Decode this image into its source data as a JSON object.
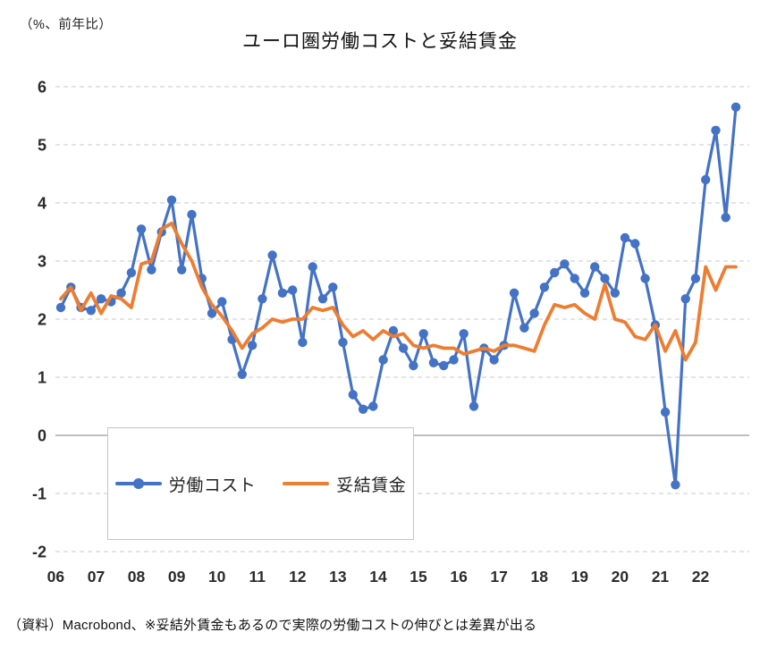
{
  "header": {
    "unit_label": "（%、前年比）",
    "title": "ユーロ圏労働コストと妥結賃金"
  },
  "legend": {
    "items": [
      {
        "id": "labor-cost",
        "label": "労働コスト",
        "color": "#4472C4",
        "has_marker": true
      },
      {
        "id": "negotiated-wages",
        "label": "妥結賃金",
        "color": "#ED7D31",
        "has_marker": false
      }
    ]
  },
  "footer": {
    "source_note": "（資料）Macrobond、※妥結外賃金もあるので実際の労働コストの伸びとは差異が出る"
  },
  "chart_data": {
    "type": "line",
    "title": "ユーロ圏労働コストと妥結賃金",
    "unit": "%、前年比",
    "frequency": "quarterly",
    "x_start": "2006Q1",
    "x_end": "2022Q4",
    "x_tick_labels": [
      "06",
      "07",
      "08",
      "09",
      "10",
      "11",
      "12",
      "13",
      "14",
      "15",
      "16",
      "17",
      "18",
      "19",
      "20",
      "21",
      "22"
    ],
    "y_ticks": [
      -2,
      -1,
      0,
      1,
      2,
      3,
      4,
      5,
      6
    ],
    "ylim": [
      -2,
      6
    ],
    "grid": "dashed-horizontal",
    "zero_line": "solid",
    "legend_position": "bottom-left-box",
    "series": [
      {
        "id": "labor-cost",
        "name": "労働コスト",
        "color": "#4472C4",
        "marker": "circle",
        "values": [
          2.2,
          2.55,
          2.2,
          2.15,
          2.35,
          2.3,
          2.45,
          2.8,
          3.55,
          2.85,
          3.5,
          4.05,
          2.85,
          3.8,
          2.7,
          2.1,
          2.3,
          1.65,
          1.05,
          1.55,
          2.35,
          3.1,
          2.45,
          2.5,
          1.6,
          2.9,
          2.35,
          2.55,
          1.6,
          0.7,
          0.45,
          0.5,
          1.3,
          1.8,
          1.5,
          1.2,
          1.75,
          1.25,
          1.2,
          1.3,
          1.75,
          0.5,
          1.5,
          1.3,
          1.55,
          2.45,
          1.85,
          2.1,
          2.55,
          2.8,
          2.95,
          2.7,
          2.45,
          2.9,
          2.7,
          2.45,
          3.4,
          3.3,
          2.7,
          1.9,
          0.4,
          -0.85,
          2.35,
          2.7,
          4.4,
          5.25,
          3.75,
          5.65
        ]
      },
      {
        "id": "negotiated-wages",
        "name": "妥結賃金",
        "color": "#ED7D31",
        "marker": "none",
        "values": [
          2.35,
          2.55,
          2.15,
          2.45,
          2.1,
          2.4,
          2.35,
          2.2,
          2.95,
          3.0,
          3.55,
          3.65,
          3.3,
          3.0,
          2.55,
          2.25,
          2.05,
          1.8,
          1.5,
          1.75,
          1.85,
          2.0,
          1.95,
          2.0,
          2.0,
          2.2,
          2.15,
          2.2,
          1.9,
          1.7,
          1.8,
          1.65,
          1.8,
          1.7,
          1.75,
          1.55,
          1.5,
          1.55,
          1.5,
          1.5,
          1.4,
          1.45,
          1.5,
          1.45,
          1.55,
          1.55,
          1.5,
          1.45,
          1.9,
          2.25,
          2.2,
          2.25,
          2.1,
          2.0,
          2.6,
          2.0,
          1.95,
          1.7,
          1.65,
          1.9,
          1.45,
          1.8,
          1.3,
          1.6,
          2.9,
          2.5,
          2.9,
          2.9
        ]
      }
    ]
  }
}
